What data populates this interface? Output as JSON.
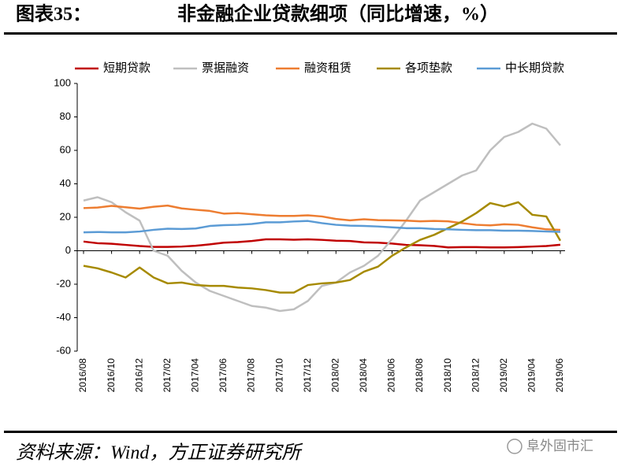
{
  "header": {
    "label": "图表35：",
    "title": "非金融企业贷款细项（同比增速，%）"
  },
  "chart_data": {
    "type": "line",
    "categories": [
      "2016/08",
      null,
      "2016/10",
      null,
      "2016/12",
      null,
      "2017/02",
      null,
      "2017/04",
      null,
      "2017/06",
      null,
      "2017/08",
      null,
      "2017/10",
      null,
      "2017/12",
      null,
      "2018/02",
      null,
      "2018/04",
      null,
      "2018/06",
      null,
      "2018/08",
      null,
      "2018/10",
      null,
      "2018/12",
      null,
      "2019/02",
      null,
      "2019/04",
      null,
      "2019/06"
    ],
    "series": [
      {
        "name": "短期贷款",
        "color": "#c00000",
        "values": [
          5.5,
          4.5,
          4.2,
          3.5,
          2.8,
          2.3,
          2.3,
          2.5,
          3,
          3.8,
          4.8,
          5.2,
          5.8,
          6.8,
          6.8,
          6.6,
          6.8,
          6.5,
          6,
          5.8,
          5,
          4.8,
          4.3,
          3.5,
          3.3,
          2.9,
          2,
          2.2,
          2.2,
          2,
          2,
          2.2,
          2.5,
          2.8,
          3.6
        ]
      },
      {
        "name": "票据融资",
        "color": "#bfbfbf",
        "values": [
          30,
          32,
          29,
          23,
          18,
          0,
          -3,
          -12,
          -19,
          -24,
          -27,
          -30,
          -33,
          -34,
          -36,
          -35,
          -30,
          -21,
          -19,
          -13,
          -9,
          -3,
          7,
          18,
          30,
          35,
          40,
          45,
          48,
          60,
          68,
          71,
          76,
          73,
          63
        ]
      },
      {
        "name": "融资租赁",
        "color": "#ed7d31",
        "values": [
          25.5,
          25.8,
          26.8,
          26,
          25.2,
          26.3,
          27,
          25.3,
          24.5,
          23.8,
          22.2,
          22.5,
          21.8,
          21.2,
          20.8,
          20.8,
          21.2,
          20.5,
          19,
          18.2,
          18.8,
          18.3,
          18.2,
          18,
          17.6,
          17.8,
          17.6,
          16.5,
          15.5,
          15.2,
          15.8,
          15.5,
          14,
          12.8,
          12.5
        ]
      },
      {
        "name": "各项垫款",
        "color": "#a68a00",
        "values": [
          -9,
          -10.5,
          -13,
          -16,
          -10,
          -16,
          -19.5,
          -19,
          -20.5,
          -21,
          -21,
          -22,
          -22.5,
          -23.5,
          -25,
          -25,
          -20.5,
          -19.5,
          -19,
          -17.5,
          -12.5,
          -9.5,
          -3,
          2,
          6.5,
          9.5,
          13.5,
          17.5,
          22.5,
          28.5,
          26.5,
          29,
          21.5,
          20.5,
          6
        ]
      },
      {
        "name": "中长期贷款",
        "color": "#5b9bd5",
        "values": [
          11,
          11.2,
          11,
          11,
          11.5,
          12.5,
          13.2,
          13,
          13.3,
          14.8,
          15.3,
          15.5,
          16,
          17,
          17,
          17.5,
          17.8,
          16.5,
          15.5,
          15,
          14.8,
          14.5,
          14,
          13.5,
          13.5,
          13,
          12.8,
          12.5,
          12.3,
          12.3,
          12,
          12,
          11.8,
          11.5,
          11.3
        ]
      }
    ],
    "ylim": [
      -60,
      100
    ],
    "yticks": [
      -60,
      -40,
      -20,
      0,
      20,
      40,
      60,
      80,
      100
    ]
  },
  "footer": {
    "source": "资料来源：Wind，方正证券研究所"
  },
  "watermark": "阜外固市汇"
}
